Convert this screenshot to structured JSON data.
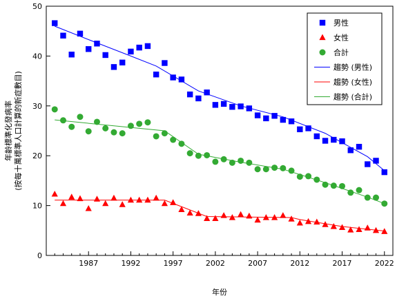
{
  "chart_data": {
    "type": "scatter",
    "xlabel": "年份",
    "ylabel_lines": [
      "年齡標準化發病率",
      "(按每十萬標準人口計算的新症數目)"
    ],
    "xlim": [
      1982,
      2023
    ],
    "ylim": [
      0,
      50
    ],
    "yticks": [
      0,
      10,
      20,
      30,
      40,
      50
    ],
    "xticks": [
      1987,
      1992,
      1997,
      2002,
      2007,
      2012,
      2017,
      2022
    ],
    "grid": false,
    "legend_position": "top-right",
    "x": [
      1983,
      1984,
      1985,
      1986,
      1987,
      1988,
      1989,
      1990,
      1991,
      1992,
      1993,
      1994,
      1995,
      1996,
      1997,
      1998,
      1999,
      2000,
      2001,
      2002,
      2003,
      2004,
      2005,
      2006,
      2007,
      2008,
      2009,
      2010,
      2011,
      2012,
      2013,
      2014,
      2015,
      2016,
      2017,
      2018,
      2019,
      2020,
      2021,
      2022
    ],
    "series": [
      {
        "name": "男性",
        "marker": "square",
        "color": "#0000ff",
        "values": [
          46.6,
          44.1,
          40.3,
          44.5,
          41.4,
          42.5,
          40.2,
          37.8,
          38.7,
          40.9,
          41.7,
          42.0,
          36.3,
          38.6,
          35.7,
          35.3,
          32.3,
          31.5,
          32.7,
          30.2,
          30.4,
          29.8,
          29.9,
          29.5,
          28.1,
          27.5,
          28.0,
          27.2,
          26.9,
          25.3,
          25.5,
          23.9,
          23.0,
          23.2,
          22.9,
          21.1,
          21.8,
          18.3,
          19.0,
          16.7
        ]
      },
      {
        "name": "女性",
        "marker": "triangle",
        "color": "#ff0000",
        "values": [
          12.3,
          10.4,
          11.7,
          11.4,
          9.4,
          11.3,
          10.4,
          11.5,
          10.2,
          11.1,
          11.1,
          11.1,
          11.5,
          10.4,
          10.6,
          9.2,
          8.5,
          8.4,
          7.4,
          7.4,
          8.0,
          7.6,
          8.2,
          7.9,
          7.1,
          7.6,
          7.6,
          8.0,
          7.3,
          6.5,
          6.8,
          6.7,
          6.2,
          5.8,
          5.6,
          5.1,
          5.2,
          5.5,
          5.0,
          4.8
        ]
      },
      {
        "name": "合計",
        "marker": "circle",
        "color": "#33aa33",
        "values": [
          29.3,
          27.1,
          25.8,
          27.8,
          24.9,
          26.8,
          25.5,
          24.7,
          24.5,
          26.0,
          26.4,
          26.7,
          23.9,
          24.5,
          23.2,
          22.4,
          20.5,
          20.0,
          20.1,
          18.8,
          19.3,
          18.6,
          19.0,
          18.6,
          17.3,
          17.3,
          17.6,
          17.5,
          17.0,
          15.8,
          15.9,
          15.2,
          14.2,
          14.0,
          13.9,
          12.6,
          13.1,
          11.6,
          11.6,
          10.4
        ]
      }
    ],
    "trends": [
      {
        "name": "趨勢 (男性)",
        "color": "#0000ff",
        "points": [
          [
            1983,
            46.0
          ],
          [
            1987,
            43.3
          ],
          [
            1992,
            40.0
          ],
          [
            1995,
            38.0
          ],
          [
            2000,
            33.0
          ],
          [
            2005,
            30.0
          ],
          [
            2010,
            27.8
          ],
          [
            2015,
            24.5
          ],
          [
            2020,
            19.8
          ],
          [
            2022,
            17.0
          ]
        ]
      },
      {
        "name": "趨勢 (女性)",
        "color": "#ff0000",
        "points": [
          [
            1983,
            11.1
          ],
          [
            1987,
            11.1
          ],
          [
            1992,
            11.1
          ],
          [
            1996,
            11.1
          ],
          [
            2001,
            7.8
          ],
          [
            2006,
            7.7
          ],
          [
            2011,
            7.6
          ],
          [
            2012,
            7.2
          ],
          [
            2017,
            5.8
          ],
          [
            2022,
            4.9
          ]
        ]
      },
      {
        "name": "趨勢 (合計)",
        "color": "#33aa33",
        "points": [
          [
            1983,
            27.2
          ],
          [
            1990,
            26.0
          ],
          [
            1996,
            25.0
          ],
          [
            2000,
            20.3
          ],
          [
            2005,
            18.7
          ],
          [
            2010,
            17.3
          ],
          [
            2015,
            14.6
          ],
          [
            2020,
            11.7
          ],
          [
            2022,
            10.4
          ]
        ]
      }
    ]
  },
  "legend": {
    "items": [
      {
        "label": "男性",
        "kind": "square",
        "color": "#0000ff"
      },
      {
        "label": "女性",
        "kind": "triangle",
        "color": "#ff0000"
      },
      {
        "label": "合計",
        "kind": "circle",
        "color": "#33aa33"
      },
      {
        "label": "趨勢 (男性)",
        "kind": "line",
        "color": "#0000ff"
      },
      {
        "label": "趨勢 (女性)",
        "kind": "line",
        "color": "#ff0000"
      },
      {
        "label": "趨勢 (合計)",
        "kind": "line",
        "color": "#33aa33"
      }
    ]
  }
}
